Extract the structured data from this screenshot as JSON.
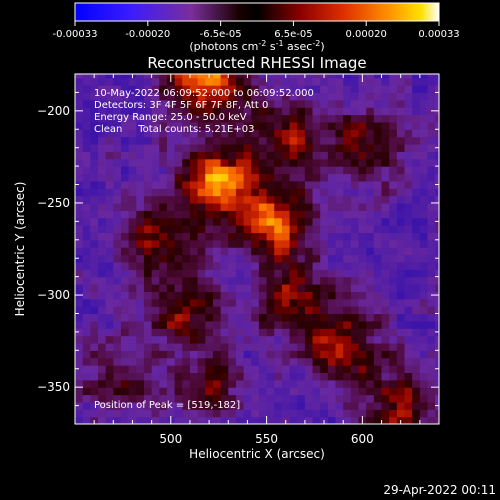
{
  "chart_data": {
    "type": "heatmap",
    "title": "Reconstructed RHESSI Image",
    "xlabel": "Heliocentric X (arcsec)",
    "ylabel": "Heliocentric Y (arcsec)",
    "xlim": [
      450,
      640
    ],
    "ylim": [
      -370,
      -180
    ],
    "xticks": [
      500,
      550,
      600
    ],
    "yticks": [
      -200,
      -250,
      -300,
      -350
    ],
    "colorbar": {
      "range": [
        -0.00033,
        0.00033
      ],
      "ticks": [
        "-0.00033",
        "-0.00020",
        "-6.5e-05",
        "6.5e-05",
        "0.00020",
        "0.00033"
      ],
      "unit": "(photons cm-2 s-1 asec-2)",
      "colormap": [
        "#0000ff",
        "#5a1aa8",
        "#7a2e9a",
        "#3a0000",
        "#8b0000",
        "#d92a00",
        "#ff7a00",
        "#ffd400",
        "#ffffff"
      ]
    },
    "annotations": [
      "10-May-2022 06:09:52.000 to 06:09:52.000",
      "Detectors: 3F 4F 5F 6F 7F 8F, Att 0",
      "Energy Range: 25.0 - 50.0 keV",
      "Clean     Total counts: 5.21E+03"
    ],
    "peak_label": "Position of Peak = [519,-182]",
    "peak": [
      519,
      -182
    ],
    "sources": [
      {
        "x": 519,
        "y": -182,
        "amp": 1.0
      },
      {
        "x": 525,
        "y": -240,
        "amp": 0.95
      },
      {
        "x": 555,
        "y": -262,
        "amp": 0.8
      },
      {
        "x": 560,
        "y": -215,
        "amp": 0.55
      },
      {
        "x": 600,
        "y": -218,
        "amp": 0.55
      },
      {
        "x": 495,
        "y": -272,
        "amp": 0.6
      },
      {
        "x": 505,
        "y": -310,
        "amp": 0.55
      },
      {
        "x": 565,
        "y": -305,
        "amp": 0.6
      },
      {
        "x": 590,
        "y": -330,
        "amp": 0.55
      },
      {
        "x": 620,
        "y": -360,
        "amp": 0.55
      },
      {
        "x": 520,
        "y": -350,
        "amp": 0.45
      },
      {
        "x": 470,
        "y": -345,
        "amp": 0.35
      }
    ]
  },
  "footer": {
    "timestamp": "29-Apr-2022 00:11"
  }
}
